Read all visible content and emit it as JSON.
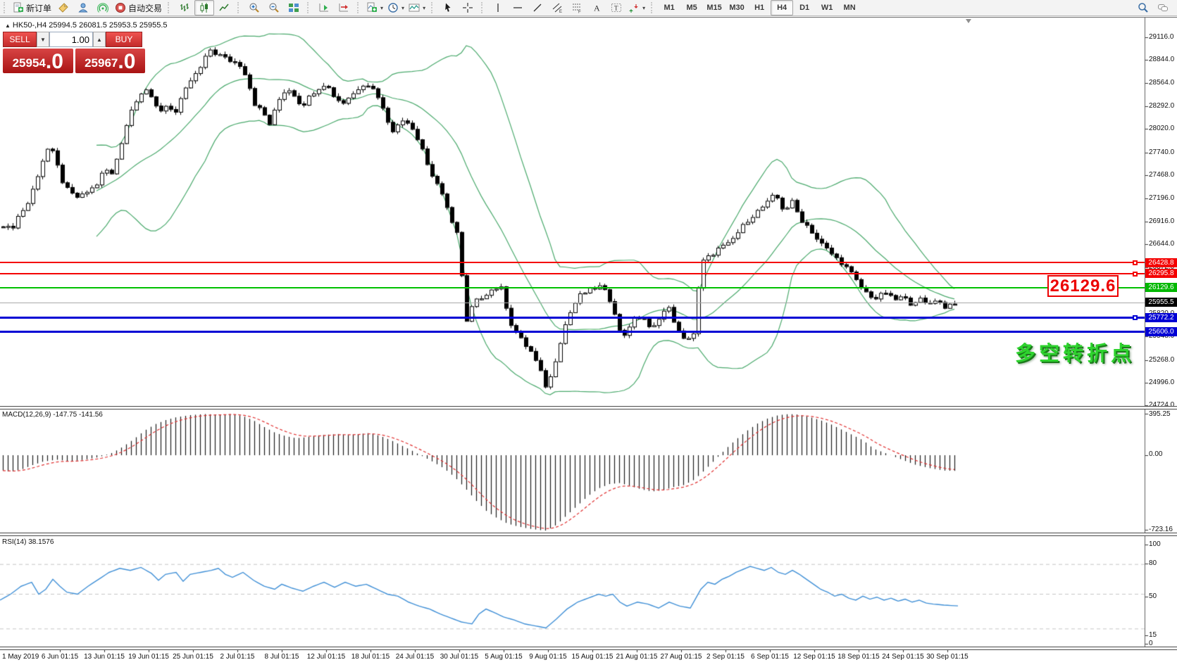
{
  "toolbar": {
    "new_order_label": "新订单",
    "autotrade_label": "自动交易",
    "timeframes": [
      "M1",
      "M5",
      "M15",
      "M30",
      "H1",
      "H4",
      "D1",
      "W1",
      "MN"
    ],
    "active_timeframe": "H4"
  },
  "symbol_info": {
    "marker": "▲",
    "text": "HK50-,H4  25994.5 26081.5 25953.5 25955.5"
  },
  "order_panel": {
    "sell_label": "SELL",
    "buy_label": "BUY",
    "volume": "1.00",
    "spin_down": "▼",
    "spin_up": "▲",
    "sell_price_main": "25954",
    "sell_price_frac": ".0",
    "buy_price_main": "25967",
    "buy_price_frac": ".0"
  },
  "price_axis": {
    "labels": [
      "29116.0",
      "28844.0",
      "28564.0",
      "28292.0",
      "28020.0",
      "27740.0",
      "27468.0",
      "27196.0",
      "26916.0",
      "26644.0",
      "26372.0",
      "26092.0",
      "25820.0",
      "25548.0",
      "25268.0",
      "24996.0",
      "24724.0"
    ],
    "badges": [
      {
        "value": "26428.8",
        "price": 26428.8,
        "color": "#f40000"
      },
      {
        "value": "26295.8",
        "price": 26295.8,
        "color": "#f40000"
      },
      {
        "value": "26129.6",
        "price": 26129.6,
        "color": "#00b800"
      },
      {
        "value": "25955.5",
        "price": 25955.5,
        "color": "#000000"
      },
      {
        "value": "25772.2",
        "price": 25772.2,
        "color": "#0000d4"
      },
      {
        "value": "25606.0",
        "price": 25606.0,
        "color": "#0000d4"
      }
    ]
  },
  "levels": [
    {
      "price": 26428.8,
      "color": "#f40000",
      "width": 2,
      "marker": true
    },
    {
      "price": 26295.8,
      "color": "#f40000",
      "width": 2,
      "marker": true
    },
    {
      "price": 26129.6,
      "color": "#00c000",
      "width": 2,
      "marker": false
    },
    {
      "price": 25955.5,
      "color": "#a8a8a8",
      "width": 1,
      "marker": false
    },
    {
      "price": 25772.2,
      "color": "#0000d4",
      "width": 3,
      "marker": true
    },
    {
      "price": 25606.0,
      "color": "#0000d4",
      "width": 3,
      "marker": false
    }
  ],
  "annotations": {
    "level_label": "26129.6",
    "turning_point": "多空转折点"
  },
  "macd": {
    "label": "MACD(12,26,9) -147.75 -141.56",
    "axis": {
      "top": "395.25",
      "zero": "0.00",
      "bottom": "-723.16"
    },
    "anchors": [
      [
        0,
        -140
      ],
      [
        15,
        -158
      ],
      [
        30,
        -135
      ],
      [
        45,
        -95
      ],
      [
        60,
        -62
      ],
      [
        80,
        -42
      ],
      [
        100,
        -58
      ],
      [
        120,
        -42
      ],
      [
        140,
        -18
      ],
      [
        160,
        25
      ],
      [
        175,
        85
      ],
      [
        190,
        155
      ],
      [
        205,
        235
      ],
      [
        220,
        295
      ],
      [
        235,
        335
      ],
      [
        250,
        362
      ],
      [
        270,
        382
      ],
      [
        290,
        392
      ],
      [
        310,
        386
      ],
      [
        330,
        392
      ],
      [
        345,
        372
      ],
      [
        360,
        330
      ],
      [
        375,
        268
      ],
      [
        390,
        215
      ],
      [
        405,
        182
      ],
      [
        420,
        162
      ],
      [
        435,
        172
      ],
      [
        450,
        188
      ],
      [
        465,
        196
      ],
      [
        480,
        202
      ],
      [
        495,
        192
      ],
      [
        510,
        202
      ],
      [
        525,
        212
      ],
      [
        540,
        182
      ],
      [
        555,
        142
      ],
      [
        570,
        92
      ],
      [
        585,
        42
      ],
      [
        600,
        -12
      ],
      [
        615,
        -65
      ],
      [
        630,
        -125
      ],
      [
        645,
        -205
      ],
      [
        660,
        -310
      ],
      [
        675,
        -425
      ],
      [
        690,
        -525
      ],
      [
        705,
        -592
      ],
      [
        720,
        -645
      ],
      [
        735,
        -672
      ],
      [
        750,
        -692
      ],
      [
        765,
        -705
      ],
      [
        775,
        -712
      ],
      [
        790,
        -655
      ],
      [
        805,
        -562
      ],
      [
        820,
        -472
      ],
      [
        835,
        -382
      ],
      [
        850,
        -312
      ],
      [
        865,
        -272
      ],
      [
        880,
        -262
      ],
      [
        895,
        -292
      ],
      [
        910,
        -322
      ],
      [
        925,
        -342
      ],
      [
        940,
        -332
      ],
      [
        955,
        -302
      ],
      [
        970,
        -282
      ],
      [
        985,
        -232
      ],
      [
        1000,
        -142
      ],
      [
        1015,
        -42
      ],
      [
        1030,
        60
      ],
      [
        1045,
        152
      ],
      [
        1060,
        232
      ],
      [
        1075,
        302
      ],
      [
        1090,
        352
      ],
      [
        1105,
        382
      ],
      [
        1120,
        392
      ],
      [
        1135,
        386
      ],
      [
        1150,
        362
      ],
      [
        1165,
        332
      ],
      [
        1180,
        292
      ],
      [
        1195,
        242
      ],
      [
        1210,
        192
      ],
      [
        1225,
        142
      ],
      [
        1240,
        62
      ],
      [
        1260,
        12
      ],
      [
        1280,
        -42
      ],
      [
        1300,
        -92
      ],
      [
        1320,
        -122
      ],
      [
        1340,
        -145
      ],
      [
        1360,
        -148
      ]
    ]
  },
  "rsi": {
    "label": "RSI(14) 38.1576",
    "axis_values": [
      "100",
      "80",
      "50",
      "15",
      "0"
    ],
    "dashed_levels": [
      80,
      50,
      15
    ],
    "anchors": [
      [
        0,
        44
      ],
      [
        15,
        50
      ],
      [
        30,
        58
      ],
      [
        45,
        62
      ],
      [
        55,
        50
      ],
      [
        65,
        55
      ],
      [
        75,
        65
      ],
      [
        85,
        58
      ],
      [
        95,
        52
      ],
      [
        110,
        50
      ],
      [
        125,
        58
      ],
      [
        140,
        65
      ],
      [
        155,
        72
      ],
      [
        170,
        76
      ],
      [
        185,
        74
      ],
      [
        200,
        77
      ],
      [
        215,
        71
      ],
      [
        225,
        64
      ],
      [
        235,
        70
      ],
      [
        250,
        72
      ],
      [
        260,
        63
      ],
      [
        270,
        70
      ],
      [
        285,
        72
      ],
      [
        300,
        74
      ],
      [
        310,
        76
      ],
      [
        320,
        70
      ],
      [
        330,
        67
      ],
      [
        345,
        72
      ],
      [
        360,
        64
      ],
      [
        375,
        58
      ],
      [
        390,
        55
      ],
      [
        400,
        60
      ],
      [
        415,
        56
      ],
      [
        430,
        53
      ],
      [
        445,
        58
      ],
      [
        460,
        62
      ],
      [
        475,
        57
      ],
      [
        490,
        62
      ],
      [
        505,
        58
      ],
      [
        520,
        60
      ],
      [
        535,
        55
      ],
      [
        550,
        50
      ],
      [
        565,
        48
      ],
      [
        580,
        42
      ],
      [
        595,
        38
      ],
      [
        610,
        35
      ],
      [
        625,
        30
      ],
      [
        640,
        26
      ],
      [
        655,
        22
      ],
      [
        670,
        20
      ],
      [
        680,
        30
      ],
      [
        690,
        35
      ],
      [
        700,
        32
      ],
      [
        715,
        27
      ],
      [
        730,
        24
      ],
      [
        745,
        20
      ],
      [
        760,
        18
      ],
      [
        775,
        16
      ],
      [
        790,
        25
      ],
      [
        805,
        35
      ],
      [
        820,
        42
      ],
      [
        835,
        46
      ],
      [
        850,
        50
      ],
      [
        860,
        48
      ],
      [
        870,
        50
      ],
      [
        880,
        42
      ],
      [
        890,
        38
      ],
      [
        905,
        42
      ],
      [
        920,
        40
      ],
      [
        935,
        36
      ],
      [
        950,
        42
      ],
      [
        965,
        38
      ],
      [
        980,
        36
      ],
      [
        995,
        55
      ],
      [
        1005,
        62
      ],
      [
        1015,
        60
      ],
      [
        1025,
        65
      ],
      [
        1035,
        68
      ],
      [
        1045,
        72
      ],
      [
        1055,
        75
      ],
      [
        1065,
        78
      ],
      [
        1075,
        76
      ],
      [
        1085,
        74
      ],
      [
        1095,
        77
      ],
      [
        1105,
        72
      ],
      [
        1115,
        70
      ],
      [
        1125,
        74
      ],
      [
        1135,
        70
      ],
      [
        1145,
        65
      ],
      [
        1155,
        60
      ],
      [
        1165,
        55
      ],
      [
        1175,
        52
      ],
      [
        1185,
        48
      ],
      [
        1195,
        50
      ],
      [
        1205,
        46
      ],
      [
        1215,
        44
      ],
      [
        1225,
        48
      ],
      [
        1235,
        45
      ],
      [
        1245,
        47
      ],
      [
        1255,
        44
      ],
      [
        1265,
        46
      ],
      [
        1275,
        43
      ],
      [
        1285,
        45
      ],
      [
        1295,
        42
      ],
      [
        1305,
        44
      ],
      [
        1315,
        41
      ],
      [
        1325,
        40
      ],
      [
        1340,
        39
      ],
      [
        1360,
        38.2
      ]
    ]
  },
  "time_axis": {
    "labels": [
      "1 May 2019",
      "6 Jun 01:15",
      "13 Jun 01:15",
      "19 Jun 01:15",
      "25 Jun 01:15",
      "2 Jul 01:15",
      "8 Jul 01:15",
      "12 Jul 01:15",
      "18 Jul 01:15",
      "24 Jul 01:15",
      "30 Jul 01:15",
      "5 Aug 01:15",
      "9 Aug 01:15",
      "15 Aug 01:15",
      "21 Aug 01:15",
      "27 Aug 01:15",
      "2 Sep 01:15",
      "6 Sep 01:15",
      "12 Sep 01:15",
      "18 Sep 01:15",
      "24 Sep 01:15",
      "30 Sep 01:15"
    ]
  },
  "chart_data": {
    "type": "candlestick",
    "symbol": "HK50-",
    "timeframe": "H4",
    "ohlc_display": {
      "open": "25994.5",
      "high": "26081.5",
      "low": "25953.5",
      "close": "25955.5"
    },
    "indicators": [
      "Bollinger Bands",
      "MACD(12,26,9)",
      "RSI(14)"
    ],
    "price_path": [
      [
        0,
        26900
      ],
      [
        15,
        26820
      ],
      [
        25,
        26980
      ],
      [
        40,
        27150
      ],
      [
        52,
        27450
      ],
      [
        62,
        27700
      ],
      [
        70,
        27830
      ],
      [
        80,
        27600
      ],
      [
        90,
        27350
      ],
      [
        100,
        27250
      ],
      [
        112,
        27200
      ],
      [
        124,
        27280
      ],
      [
        136,
        27350
      ],
      [
        148,
        27550
      ],
      [
        158,
        27480
      ],
      [
        168,
        27750
      ],
      [
        178,
        28050
      ],
      [
        188,
        28300
      ],
      [
        198,
        28450
      ],
      [
        208,
        28500
      ],
      [
        218,
        28300
      ],
      [
        228,
        28250
      ],
      [
        238,
        28320
      ],
      [
        248,
        28200
      ],
      [
        258,
        28400
      ],
      [
        268,
        28580
      ],
      [
        278,
        28680
      ],
      [
        288,
        28800
      ],
      [
        296,
        28980
      ],
      [
        304,
        28930
      ],
      [
        312,
        28900
      ],
      [
        322,
        28850
      ],
      [
        332,
        28820
      ],
      [
        342,
        28780
      ],
      [
        352,
        28600
      ],
      [
        358,
        28350
      ],
      [
        366,
        28280
      ],
      [
        374,
        28200
      ],
      [
        382,
        28080
      ],
      [
        390,
        28250
      ],
      [
        398,
        28420
      ],
      [
        406,
        28500
      ],
      [
        414,
        28480
      ],
      [
        422,
        28350
      ],
      [
        430,
        28320
      ],
      [
        438,
        28400
      ],
      [
        446,
        28480
      ],
      [
        454,
        28530
      ],
      [
        462,
        28570
      ],
      [
        470,
        28450
      ],
      [
        478,
        28380
      ],
      [
        486,
        28330
      ],
      [
        494,
        28400
      ],
      [
        502,
        28450
      ],
      [
        510,
        28530
      ],
      [
        518,
        28580
      ],
      [
        526,
        28520
      ],
      [
        534,
        28460
      ],
      [
        542,
        28280
      ],
      [
        550,
        28120
      ],
      [
        558,
        28000
      ],
      [
        566,
        28080
      ],
      [
        574,
        28150
      ],
      [
        582,
        28080
      ],
      [
        590,
        27950
      ],
      [
        598,
        27820
      ],
      [
        606,
        27600
      ],
      [
        614,
        27450
      ],
      [
        622,
        27350
      ],
      [
        630,
        27150
      ],
      [
        640,
        26950
      ],
      [
        650,
        26750
      ],
      [
        654,
        26500
      ],
      [
        658,
        25550
      ],
      [
        664,
        25800
      ],
      [
        672,
        25950
      ],
      [
        680,
        26000
      ],
      [
        695,
        26100
      ],
      [
        710,
        26150
      ],
      [
        725,
        25700
      ],
      [
        740,
        25500
      ],
      [
        755,
        25350
      ],
      [
        768,
        25100
      ],
      [
        776,
        24920
      ],
      [
        784,
        25150
      ],
      [
        792,
        25400
      ],
      [
        800,
        25650
      ],
      [
        812,
        25900
      ],
      [
        824,
        26050
      ],
      [
        836,
        26100
      ],
      [
        850,
        26150
      ],
      [
        862,
        26050
      ],
      [
        874,
        25800
      ],
      [
        882,
        25500
      ],
      [
        890,
        25650
      ],
      [
        900,
        25750
      ],
      [
        912,
        25800
      ],
      [
        924,
        25600
      ],
      [
        936,
        25800
      ],
      [
        948,
        25900
      ],
      [
        958,
        25700
      ],
      [
        968,
        25500
      ],
      [
        978,
        25550
      ],
      [
        986,
        25600
      ],
      [
        994,
        26420
      ],
      [
        1006,
        26500
      ],
      [
        1020,
        26600
      ],
      [
        1034,
        26650
      ],
      [
        1048,
        26800
      ],
      [
        1062,
        26950
      ],
      [
        1076,
        27050
      ],
      [
        1090,
        27150
      ],
      [
        1100,
        27250
      ],
      [
        1112,
        27050
      ],
      [
        1124,
        27150
      ],
      [
        1136,
        26950
      ],
      [
        1148,
        26850
      ],
      [
        1160,
        26700
      ],
      [
        1172,
        26600
      ],
      [
        1184,
        26500
      ],
      [
        1196,
        26420
      ],
      [
        1208,
        26300
      ],
      [
        1220,
        26150
      ],
      [
        1232,
        26050
      ],
      [
        1244,
        26000
      ],
      [
        1256,
        26080
      ],
      [
        1268,
        25980
      ],
      [
        1280,
        26020
      ],
      [
        1292,
        25950
      ],
      [
        1304,
        26000
      ],
      [
        1316,
        25920
      ],
      [
        1328,
        26000
      ],
      [
        1340,
        25900
      ],
      [
        1352,
        25950
      ],
      [
        1360,
        25955
      ]
    ]
  }
}
